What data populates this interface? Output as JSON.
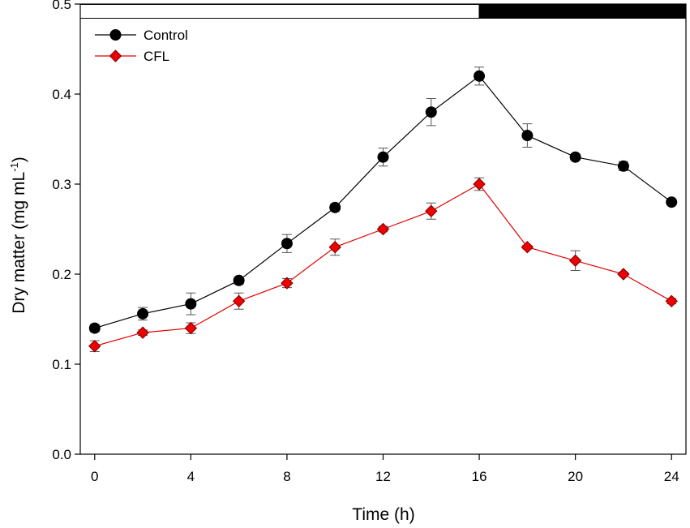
{
  "chart_data": {
    "type": "line",
    "title": "",
    "xlabel": "Time (h)",
    "ylabel_main": "Dry matter (mg mL",
    "ylabel_sup": "-1",
    "ylabel_close": ")",
    "xlim": [
      -0.6,
      24.6
    ],
    "ylim": [
      0,
      0.5
    ],
    "xticks": [
      0,
      4,
      8,
      12,
      16,
      20,
      24
    ],
    "xtick_labels": [
      "0",
      "4",
      "8",
      "12",
      "16",
      "20",
      "24"
    ],
    "yticks": [
      0.0,
      0.1,
      0.2,
      0.3,
      0.4,
      0.5
    ],
    "ytick_labels": [
      "0.0",
      "0.1",
      "0.2",
      "0.3",
      "0.4",
      "0.5"
    ],
    "photoperiod": {
      "light": [
        -0.6,
        16
      ],
      "dark": [
        16,
        24.6
      ]
    },
    "x": [
      0,
      2,
      4,
      6,
      8,
      10,
      12,
      14,
      16,
      18,
      20,
      22,
      24
    ],
    "series": [
      {
        "name": "Control",
        "marker": "circle",
        "line_color": "#000000",
        "fill_color": "#000000",
        "values": [
          0.14,
          0.156,
          0.167,
          0.193,
          0.234,
          0.274,
          0.33,
          0.38,
          0.42,
          0.354,
          0.33,
          0.32,
          0.28
        ],
        "errors": [
          0.004,
          0.007,
          0.012,
          0.004,
          0.01,
          0.004,
          0.01,
          0.015,
          0.01,
          0.013,
          0.003,
          0.005,
          0.003
        ]
      },
      {
        "name": "CFL",
        "marker": "diamond",
        "line_color": "#e00000",
        "fill_color": "#ee0000",
        "values": [
          0.12,
          0.135,
          0.14,
          0.17,
          0.19,
          0.23,
          0.25,
          0.27,
          0.3,
          0.23,
          0.215,
          0.2,
          0.17
        ],
        "errors": [
          0.006,
          0.003,
          0.006,
          0.009,
          0.005,
          0.009,
          0.003,
          0.009,
          0.007,
          0.002,
          0.011,
          0.002,
          0.003
        ]
      }
    ],
    "legend_position": "top-left"
  }
}
